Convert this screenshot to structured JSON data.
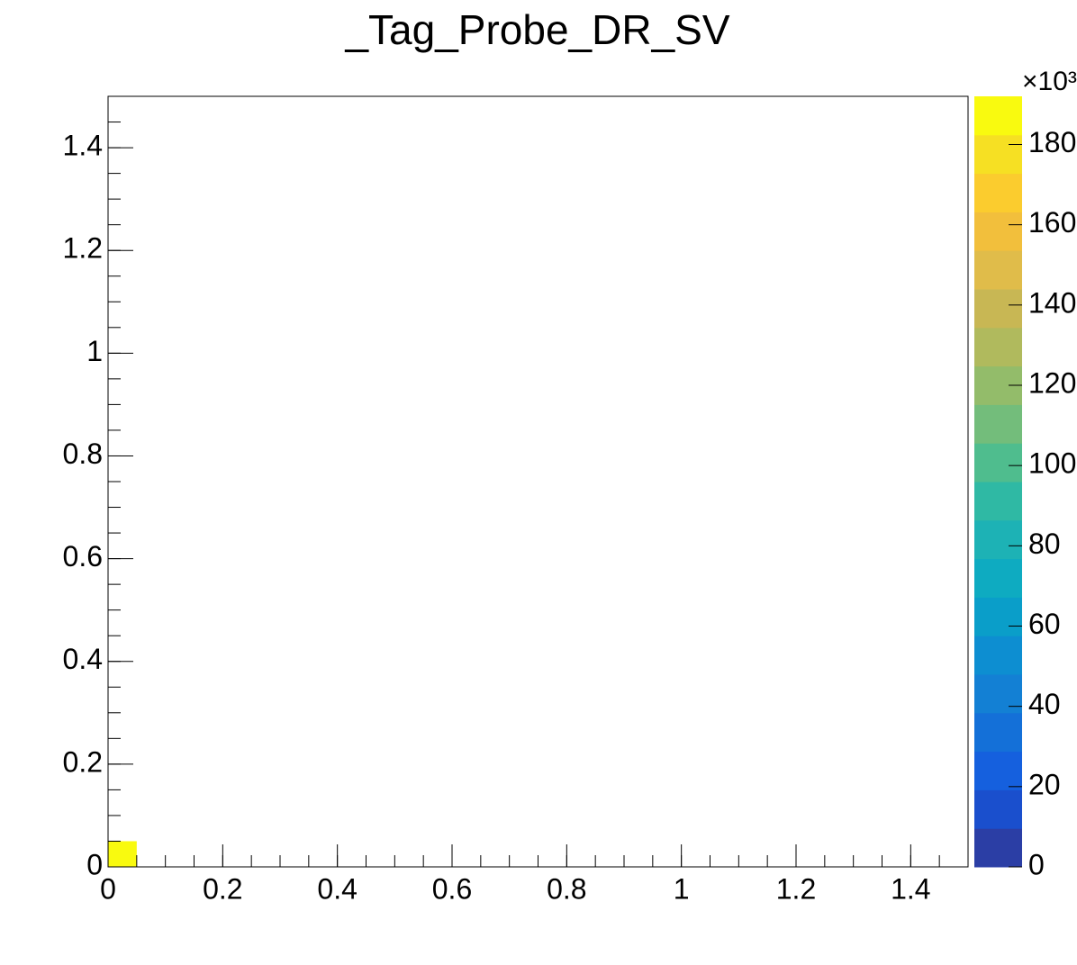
{
  "chart_data": {
    "type": "heatmap",
    "title": "_Tag_Probe_DR_SV",
    "xlim": [
      0,
      1.5
    ],
    "ylim": [
      0,
      1.5
    ],
    "xticks": [
      0,
      0.2,
      0.4,
      0.6,
      0.8,
      1,
      1.2,
      1.4
    ],
    "yticks": [
      0,
      0.2,
      0.4,
      0.6,
      0.8,
      1,
      1.2,
      1.4
    ],
    "cells": [
      {
        "x0": 0,
        "x1": 0.05,
        "y0": 0,
        "y1": 0.05,
        "value": 192
      }
    ],
    "zlim": [
      0,
      192
    ],
    "zticks": [
      0,
      20,
      40,
      60,
      80,
      100,
      120,
      140,
      160,
      180
    ],
    "z_multiplier": "×10³",
    "palette": [
      "#2b3ea5",
      "#1a4fcd",
      "#1560de",
      "#1470d8",
      "#1380d4",
      "#0d8ed1",
      "#0a9ec9",
      "#0eabc1",
      "#1db2b5",
      "#2fb9a4",
      "#4fbd8e",
      "#73bd7b",
      "#93bc6a",
      "#b0ba5d",
      "#c8b754",
      "#e0bc4a",
      "#f2bf3c",
      "#fbcc2e",
      "#f6e023",
      "#f9fa0f"
    ]
  }
}
